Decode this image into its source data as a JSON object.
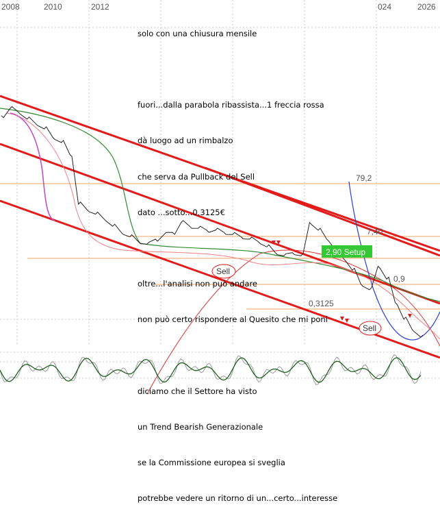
{
  "chart_data": {
    "type": "line",
    "x_tick_labels": [
      "2008",
      "2010",
      "2012",
      "2026"
    ],
    "x_tick_labels_partial": [
      "024"
    ],
    "price_labels": [
      "79,2",
      "7,40",
      "0,9",
      "0,3125"
    ],
    "setup_label": "2,90 Setup",
    "sell_labels": [
      "Sell",
      "Sell"
    ],
    "price_series": {
      "name": "",
      "values": [
        10.2,
        11.5,
        10.8,
        9.6,
        8.9,
        8.1,
        7.0,
        6.4,
        5.2,
        2.2,
        2.0,
        1.85,
        1.7,
        1.5,
        1.35,
        1.25,
        1.15,
        1.1,
        1.2,
        1.3,
        1.35,
        1.6,
        1.5,
        1.45,
        1.4,
        1.4,
        1.35,
        1.3,
        1.25,
        1.2,
        1.15,
        1.05,
        0.95,
        0.9,
        0.95,
        0.9,
        1.6,
        1.4,
        1.2,
        1.0,
        0.85,
        0.7,
        0.55,
        0.5,
        0.75,
        0.6,
        0.4,
        0.3,
        0.25,
        0.22
      ]
    },
    "colors": {
      "price": "#222222",
      "channel": "#e21b1b",
      "level_lines": "#f2a35e",
      "ma_long": "#2e8b2e",
      "ma_short": "#f08080",
      "ma_fast": "#c050c0",
      "parabola": "#2b3fd6",
      "setup_box": "#34c934",
      "oscillator": "#1f5f1f"
    },
    "grid": true
  },
  "annotation": {
    "lines": [
      "solo con una chiusura mensile",
      "",
      "fuori...dalla parabola ribassista...1 freccia rossa",
      "dà luogo ad un rimbalzo",
      "che serva da Pullback del Sell",
      "dato ...sotto...0,3125€",
      "",
      "oltre...l'analisi non può andare",
      "non può certo rispondere al Quesito che mi poni",
      "",
      "diciamo che il Settore ha visto",
      "un Trend Bearish Generazionale",
      "se la Commissione europea si sveglia",
      "potrebbe vedere un ritorno di un...certo...interesse"
    ]
  }
}
